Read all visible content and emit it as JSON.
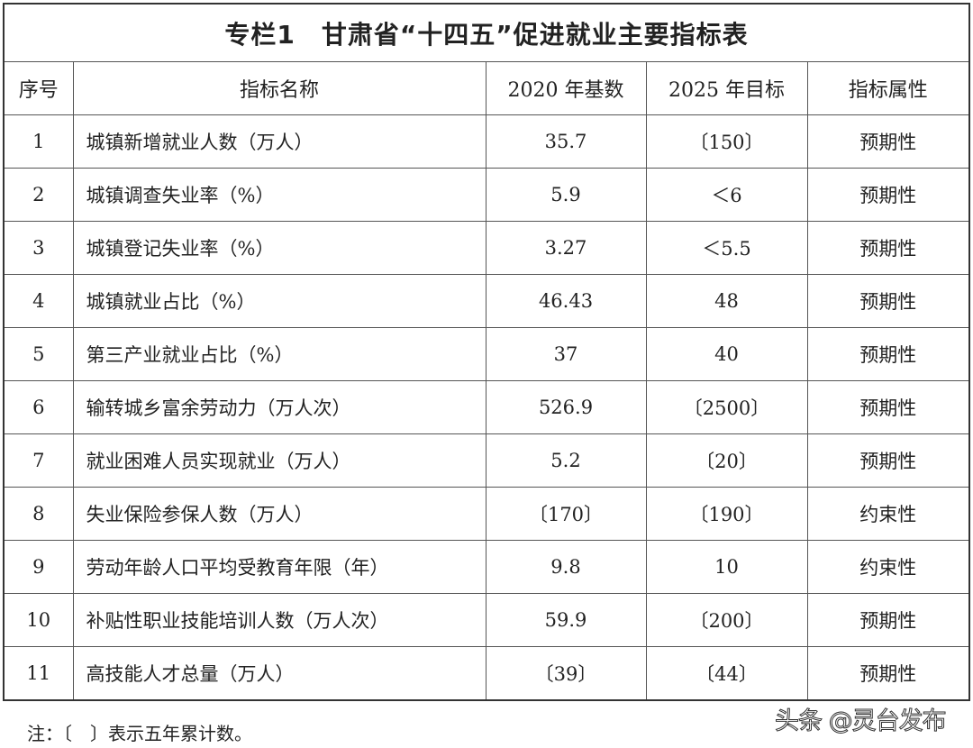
{
  "title": "专栏1　甘肃省“十四五”促进就业主要指标表",
  "headers": [
    "序号",
    "指标名称",
    "2020 年基数",
    "2025 年目标",
    "指标属性"
  ],
  "rows": [
    [
      "1",
      "城镇新增就业人数（万人）",
      "35.7",
      "〔150〕",
      "预期性"
    ],
    [
      "2",
      "城镇调查失业率（%）",
      "5.9",
      "＜6",
      "预期性"
    ],
    [
      "3",
      "城镇登记失业率（%）",
      "3.27",
      "＜5.5",
      "预期性"
    ],
    [
      "4",
      "城镇就业占比（%）",
      "46.43",
      "48",
      "预期性"
    ],
    [
      "5",
      "第三产业就业占比（%）",
      "37",
      "40",
      "预期性"
    ],
    [
      "6",
      "输转城乡富余劳动力（万人次）",
      "526.9",
      "〔2500〕",
      "预期性"
    ],
    [
      "7",
      "就业困难人员实现就业（万人）",
      "5.2",
      "〔20〕",
      "预期性"
    ],
    [
      "8",
      "失业保险参保人数（万人）",
      "〔170〕",
      "〔190〕",
      "约束性"
    ],
    [
      "9",
      "劳动年龄人口平均受教育年限（年）",
      "9.8",
      "10",
      "约束性"
    ],
    [
      "10",
      "补贴性职业技能培训人数（万人次）",
      "59.9",
      "〔200〕",
      "预期性"
    ],
    [
      "11",
      "高技能人才总量（万人）",
      "〔39〕",
      "〔44〕",
      "预期性"
    ]
  ],
  "note": "注：〔　〕表示五年累计数。",
  "watermark": "头条 @灵台发布"
}
